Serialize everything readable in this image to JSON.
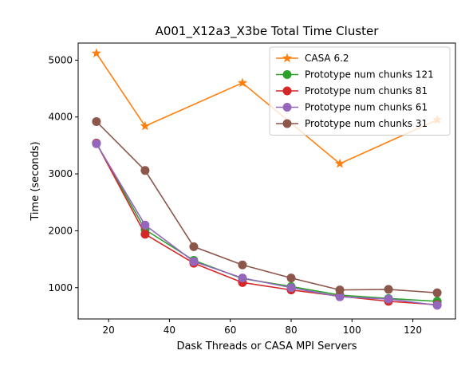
{
  "chart_data": {
    "type": "line",
    "title": "A001_X12a3_X3be Total Time Cluster",
    "xlabel": "Dask Threads or CASA MPI Servers",
    "ylabel": "Time (seconds)",
    "xlim": [
      10,
      134
    ],
    "ylim": [
      450,
      5300
    ],
    "xticks": [
      20,
      40,
      60,
      80,
      100,
      120
    ],
    "yticks": [
      1000,
      2000,
      3000,
      4000,
      5000
    ],
    "grid": false,
    "legend_position": "top-right",
    "series": [
      {
        "name": "CASA 6.2",
        "color": "#ff7f0e",
        "marker": "star",
        "x": [
          16,
          32,
          64,
          96,
          128
        ],
        "y": [
          5120,
          3840,
          4600,
          3180,
          3950
        ]
      },
      {
        "name": "Prototype num chunks 121",
        "color": "#2ca02c",
        "marker": "circle",
        "x": [
          16,
          32,
          48,
          64,
          80,
          96,
          112,
          128
        ],
        "y": [
          3540,
          2020,
          1480,
          1160,
          1020,
          870,
          810,
          760
        ]
      },
      {
        "name": "Prototype num chunks 81",
        "color": "#d62728",
        "marker": "circle",
        "x": [
          16,
          32,
          48,
          64,
          80,
          96,
          112,
          128
        ],
        "y": [
          3540,
          1940,
          1430,
          1090,
          960,
          850,
          760,
          700
        ]
      },
      {
        "name": "Prototype num chunks 61",
        "color": "#9467bd",
        "marker": "circle",
        "x": [
          16,
          32,
          48,
          64,
          80,
          96,
          112,
          128
        ],
        "y": [
          3530,
          2100,
          1460,
          1170,
          1000,
          840,
          800,
          690
        ]
      },
      {
        "name": "Prototype num chunks 31",
        "color": "#8c564b",
        "marker": "circle",
        "x": [
          16,
          32,
          48,
          64,
          80,
          96,
          112,
          128
        ],
        "y": [
          3920,
          3060,
          1720,
          1400,
          1170,
          960,
          970,
          910
        ]
      }
    ]
  }
}
